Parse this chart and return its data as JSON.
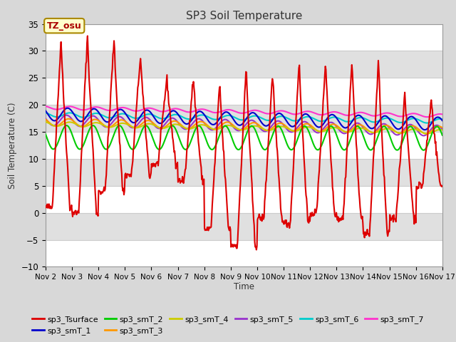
{
  "title": "SP3 Soil Temperature",
  "ylabel": "Soil Temperature (C)",
  "xlabel": "Time",
  "ylim": [
    -10,
    35
  ],
  "yticks": [
    -10,
    -5,
    0,
    5,
    10,
    15,
    20,
    25,
    30,
    35
  ],
  "xtick_labels": [
    "Nov 2",
    "Nov 3",
    "Nov 4",
    "Nov 5",
    "Nov 6",
    "Nov 7",
    "Nov 8",
    "Nov 9",
    "Nov 10",
    "Nov 11",
    "Nov 12",
    "Nov 13",
    "Nov 14",
    "Nov 15",
    "Nov 16",
    "Nov 17"
  ],
  "annotation_text": "TZ_osu",
  "annotation_color": "#aa0000",
  "annotation_bg": "#ffffcc",
  "annotation_border": "#aa8800",
  "series_colors": {
    "sp3_Tsurface": "#dd0000",
    "sp3_smT_1": "#0000cc",
    "sp3_smT_2": "#00cc00",
    "sp3_smT_3": "#ff9900",
    "sp3_smT_4": "#cccc00",
    "sp3_smT_5": "#9933cc",
    "sp3_smT_6": "#00cccc",
    "sp3_smT_7": "#ff33cc"
  },
  "stripe_colors": [
    "#ffffff",
    "#e8e8e8"
  ],
  "grid_line_color": "#cccccc",
  "fig_bg": "#d8d8d8",
  "plot_bg": "#e8e8e8"
}
